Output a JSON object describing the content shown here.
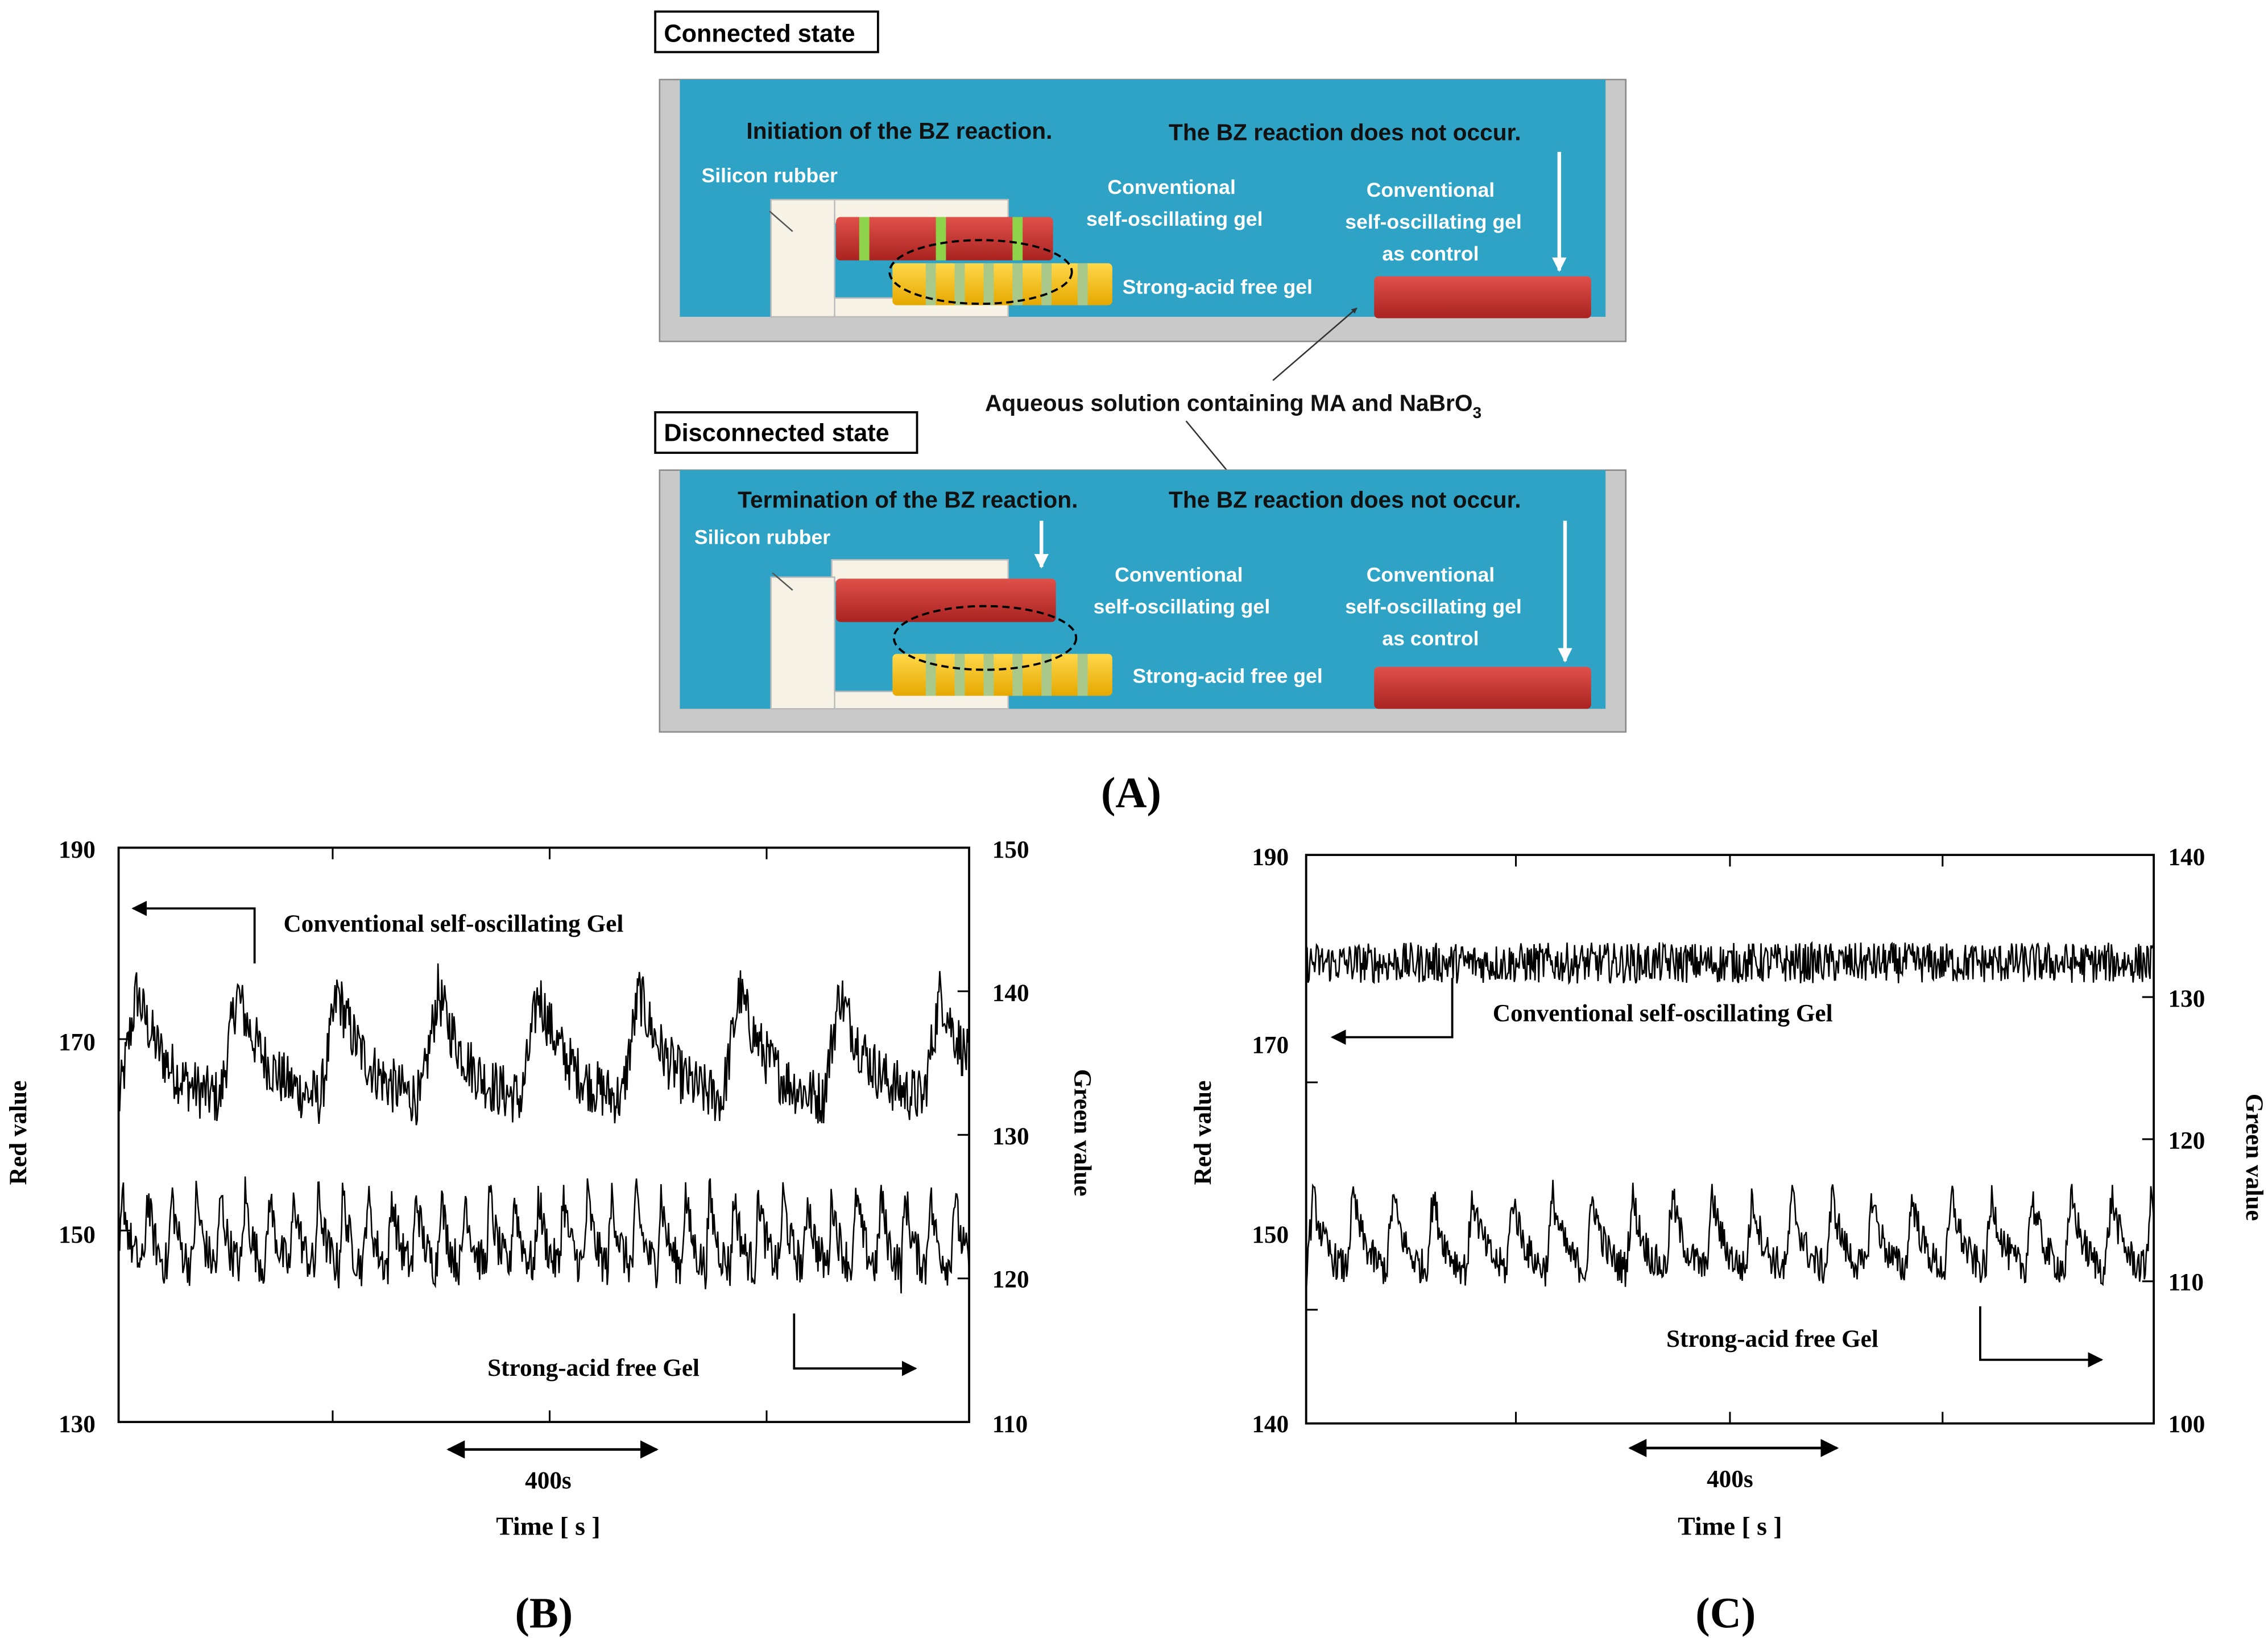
{
  "panelA": {
    "connected_label": "Connected state",
    "disconnected_label": "Disconnected state",
    "top": {
      "initiation": "Initiation of the BZ reaction.",
      "no_reaction": "The BZ reaction does not occur.",
      "silicon": "Silicon rubber",
      "conv_line1": "Conventional",
      "conv_line2": "self-oscillating gel",
      "ctrl_line1": "Conventional",
      "ctrl_line2": "self-oscillating gel",
      "ctrl_line3": "as control",
      "sa_free": "Strong-acid free gel"
    },
    "aqueous_main": "Aqueous solution containing MA and NaBrO",
    "aqueous_sub": "3",
    "bottom": {
      "termination": "Termination of the BZ reaction.",
      "no_reaction": "The BZ reaction does not occur.",
      "silicon": "Silicon rubber",
      "conv_line1": "Conventional",
      "conv_line2": "self-oscillating gel",
      "ctrl_line1": "Conventional",
      "ctrl_line2": "self-oscillating gel",
      "ctrl_line3": "as control",
      "sa_free": "Strong-acid free gel"
    },
    "colors": {
      "water": "#2ea3c6",
      "tray": "#c9c9c9",
      "red_gel": "#c9302c",
      "yellow_gel": "#f7c200",
      "stripe": "#a9c98a",
      "green_stripe": "#8fd34b",
      "rubber": "#f6f3e6"
    },
    "label": "(A)"
  },
  "chart_data": [
    {
      "type": "line",
      "panel_label": "(B)",
      "xlabel": "Time [ s ]",
      "ylabel": "Red value",
      "y2label": "Green value",
      "ylim": [
        130,
        190
      ],
      "y2lim": [
        110,
        150
      ],
      "yticks": [
        "130",
        "150",
        "170",
        "190"
      ],
      "y2ticks": [
        "110",
        "120",
        "130",
        "140",
        "150"
      ],
      "scale_bar": "400s",
      "duration_s": 1600,
      "series": [
        {
          "name": "Conventional self-oscillating Gel",
          "axis": "left",
          "period_s": 189,
          "baseline": 163,
          "peak": 175,
          "noise": 3
        },
        {
          "name": "Strong-acid free Gel",
          "axis": "right",
          "period_s": 46,
          "baseline": 120.5,
          "peak": 126,
          "noise": 1.6
        }
      ]
    },
    {
      "type": "line",
      "panel_label": "(C)",
      "xlabel": "Time [ s ]",
      "ylabel": "Red value",
      "y2label": "Green value",
      "ylim": [
        140,
        190
      ],
      "y2lim": [
        100,
        140
      ],
      "yticks": [
        "140",
        "150",
        "170",
        "190"
      ],
      "y2ticks": [
        "100",
        "110",
        "120",
        "130",
        "140"
      ],
      "scale_bar": "400s",
      "duration_s": 1550,
      "series": [
        {
          "name": "Conventional self-oscillating Gel",
          "axis": "left",
          "period_s": 0,
          "baseline": 180.5,
          "peak": 181,
          "noise": 1.8
        },
        {
          "name": "Strong-acid free Gel",
          "axis": "right",
          "period_s": 73,
          "baseline": 110.5,
          "peak": 116,
          "noise": 1.3
        }
      ]
    }
  ]
}
